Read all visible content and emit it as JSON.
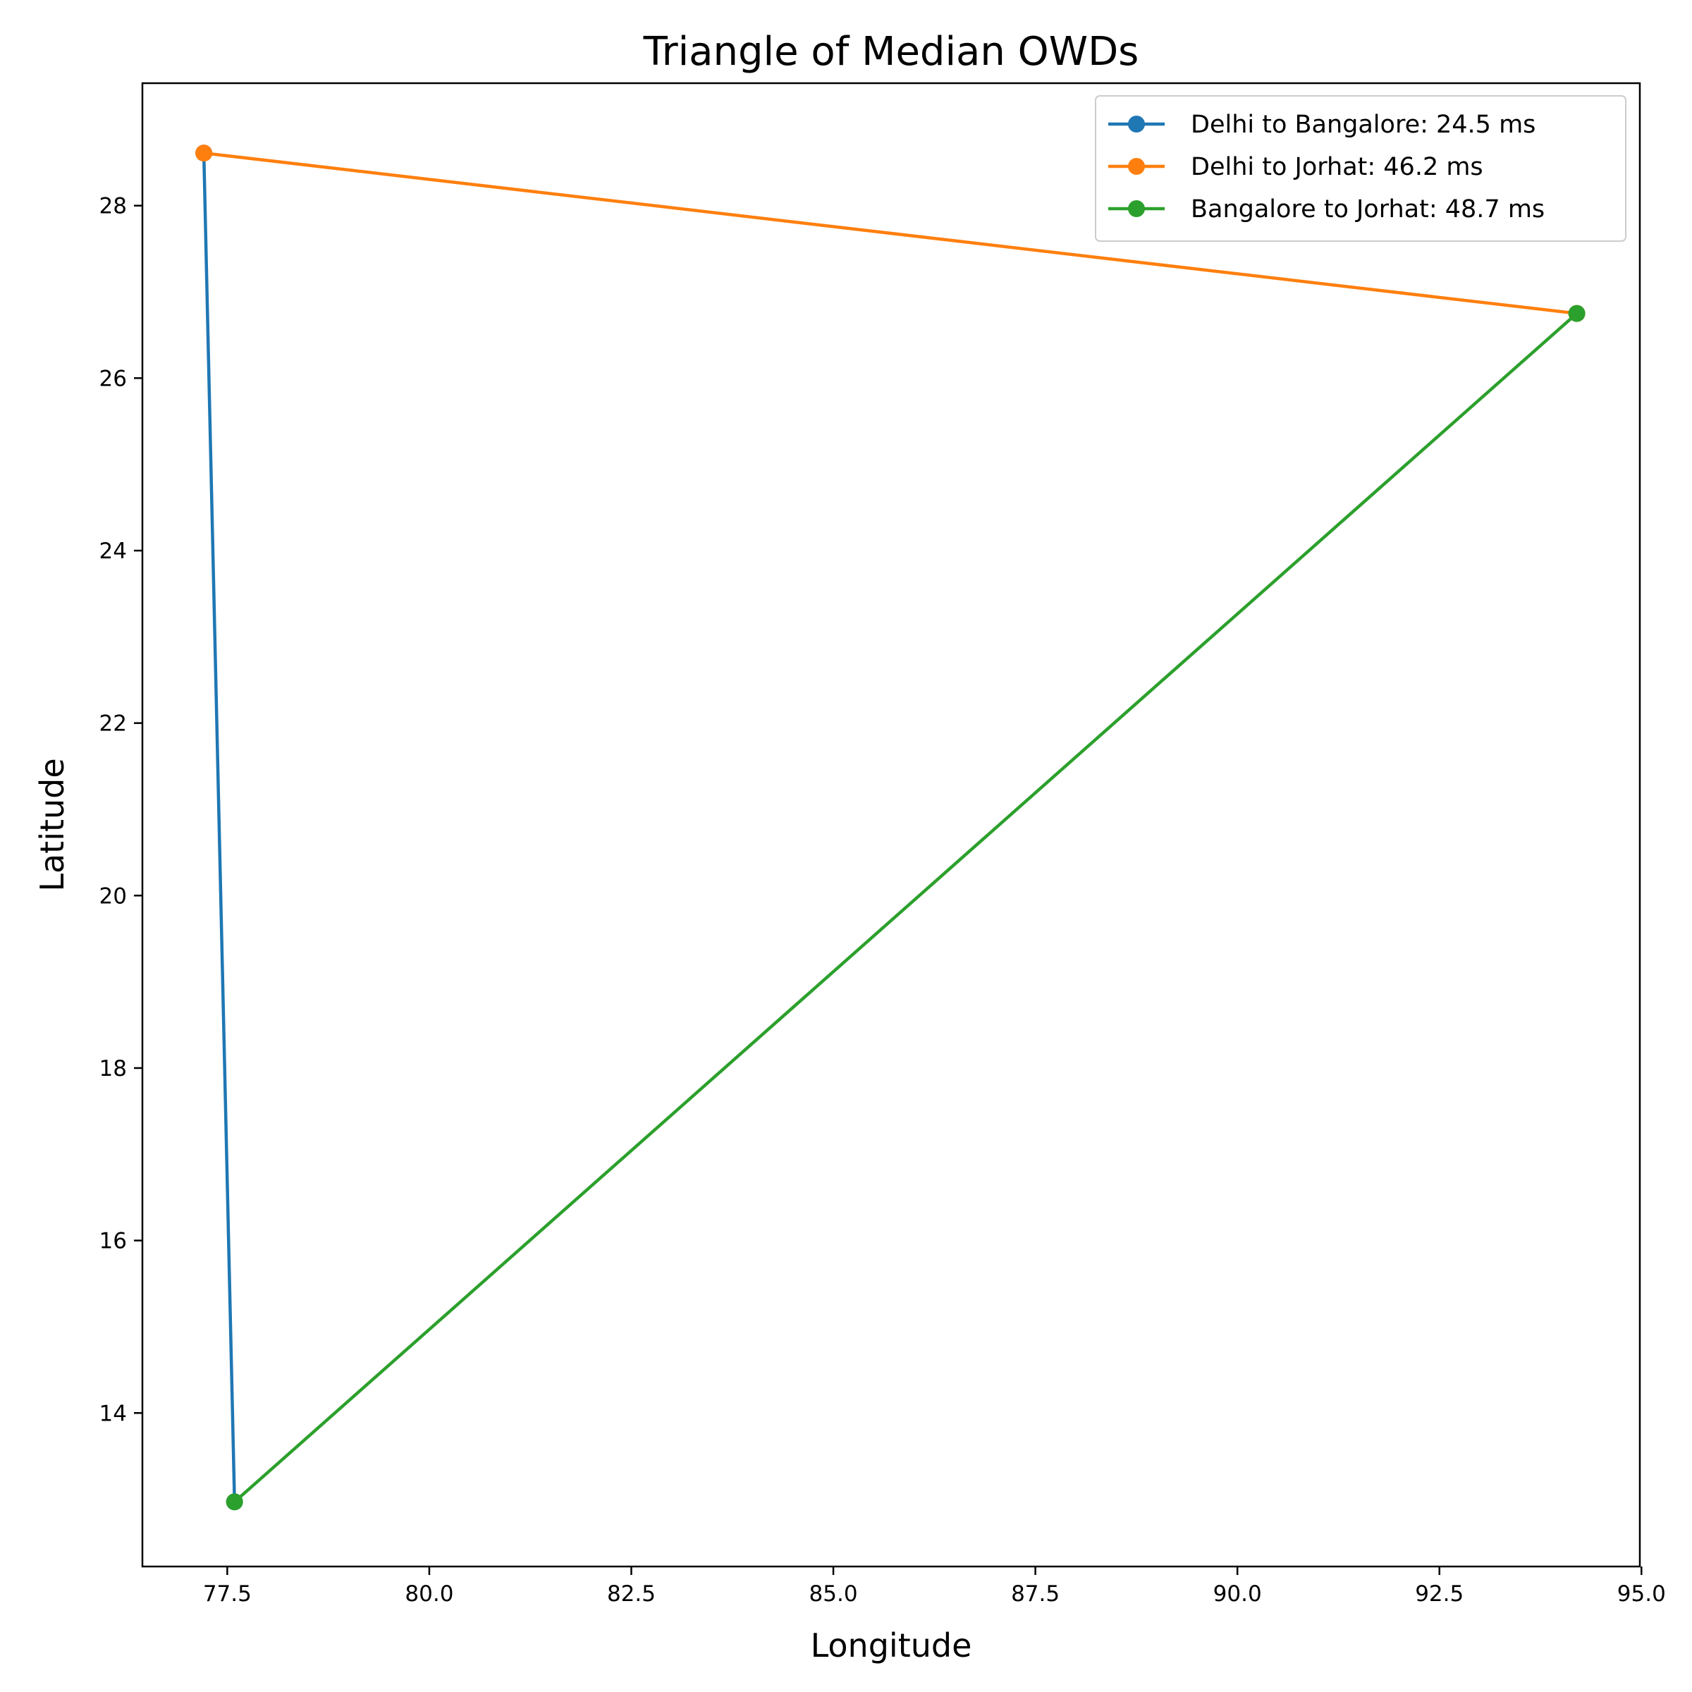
{
  "chart_data": {
    "type": "line",
    "title": "Triangle of Median OWDs",
    "xlabel": "Longitude",
    "ylabel": "Latitude",
    "xlim": [
      76.45,
      94.98
    ],
    "ylim": [
      12.22,
      29.42
    ],
    "x_ticks": [
      77.5,
      80.0,
      82.5,
      85.0,
      87.5,
      90.0,
      92.5,
      95.0
    ],
    "x_tick_labels": [
      "77.5",
      "80.0",
      "82.5",
      "85.0",
      "87.5",
      "90.0",
      "92.5",
      "95.0"
    ],
    "y_ticks": [
      14,
      16,
      18,
      20,
      22,
      24,
      26,
      28
    ],
    "y_tick_labels": [
      "14",
      "16",
      "18",
      "20",
      "22",
      "24",
      "26",
      "28"
    ],
    "grid": false,
    "legend_position": "top-right",
    "series": [
      {
        "name": "Delhi to Bangalore: 24.5 ms",
        "color": "#1f77b4",
        "x": [
          77.21,
          77.59
        ],
        "y": [
          28.61,
          12.97
        ]
      },
      {
        "name": "Delhi to Jorhat: 46.2 ms",
        "color": "#ff7f0e",
        "x": [
          77.21,
          94.2
        ],
        "y": [
          28.61,
          26.75
        ]
      },
      {
        "name": "Bangalore to Jorhat: 48.7 ms",
        "color": "#2ca02c",
        "x": [
          77.59,
          94.2
        ],
        "y": [
          12.97,
          26.75
        ]
      }
    ]
  }
}
